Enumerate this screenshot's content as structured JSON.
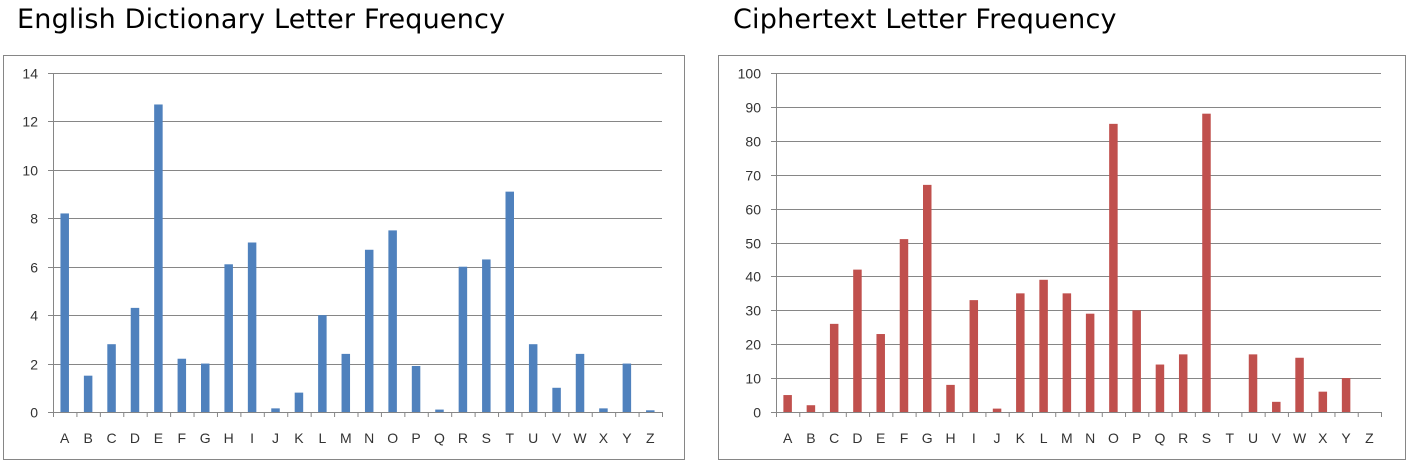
{
  "chart_data": [
    {
      "type": "bar",
      "title": "English Dictionary Letter Frequency",
      "xlabel": "",
      "ylabel": "",
      "ylim": [
        0,
        14
      ],
      "yticks": [
        0,
        2,
        4,
        6,
        8,
        10,
        12,
        14
      ],
      "grid": true,
      "color": "#4f81bd",
      "categories": [
        "A",
        "B",
        "C",
        "D",
        "E",
        "F",
        "G",
        "H",
        "I",
        "J",
        "K",
        "L",
        "M",
        "N",
        "O",
        "P",
        "Q",
        "R",
        "S",
        "T",
        "U",
        "V",
        "W",
        "X",
        "Y",
        "Z"
      ],
      "values": [
        8.2,
        1.5,
        2.8,
        4.3,
        12.7,
        2.2,
        2.0,
        6.1,
        7.0,
        0.15,
        0.8,
        4.0,
        2.4,
        6.7,
        7.5,
        1.9,
        0.1,
        6.0,
        6.3,
        9.1,
        2.8,
        1.0,
        2.4,
        0.15,
        2.0,
        0.07
      ]
    },
    {
      "type": "bar",
      "title": "Ciphertext Letter Frequency",
      "xlabel": "",
      "ylabel": "",
      "ylim": [
        0,
        100
      ],
      "yticks": [
        0,
        10,
        20,
        30,
        40,
        50,
        60,
        70,
        80,
        90,
        100
      ],
      "grid": true,
      "color": "#c0504d",
      "categories": [
        "A",
        "B",
        "C",
        "D",
        "E",
        "F",
        "G",
        "H",
        "I",
        "J",
        "K",
        "L",
        "M",
        "N",
        "O",
        "P",
        "Q",
        "R",
        "S",
        "T",
        "U",
        "V",
        "W",
        "X",
        "Y",
        "Z"
      ],
      "values": [
        5,
        2,
        26,
        42,
        23,
        51,
        67,
        8,
        33,
        1,
        35,
        39,
        35,
        29,
        85,
        30,
        14,
        17,
        88,
        0,
        17,
        3,
        16,
        6,
        10,
        0
      ]
    }
  ]
}
